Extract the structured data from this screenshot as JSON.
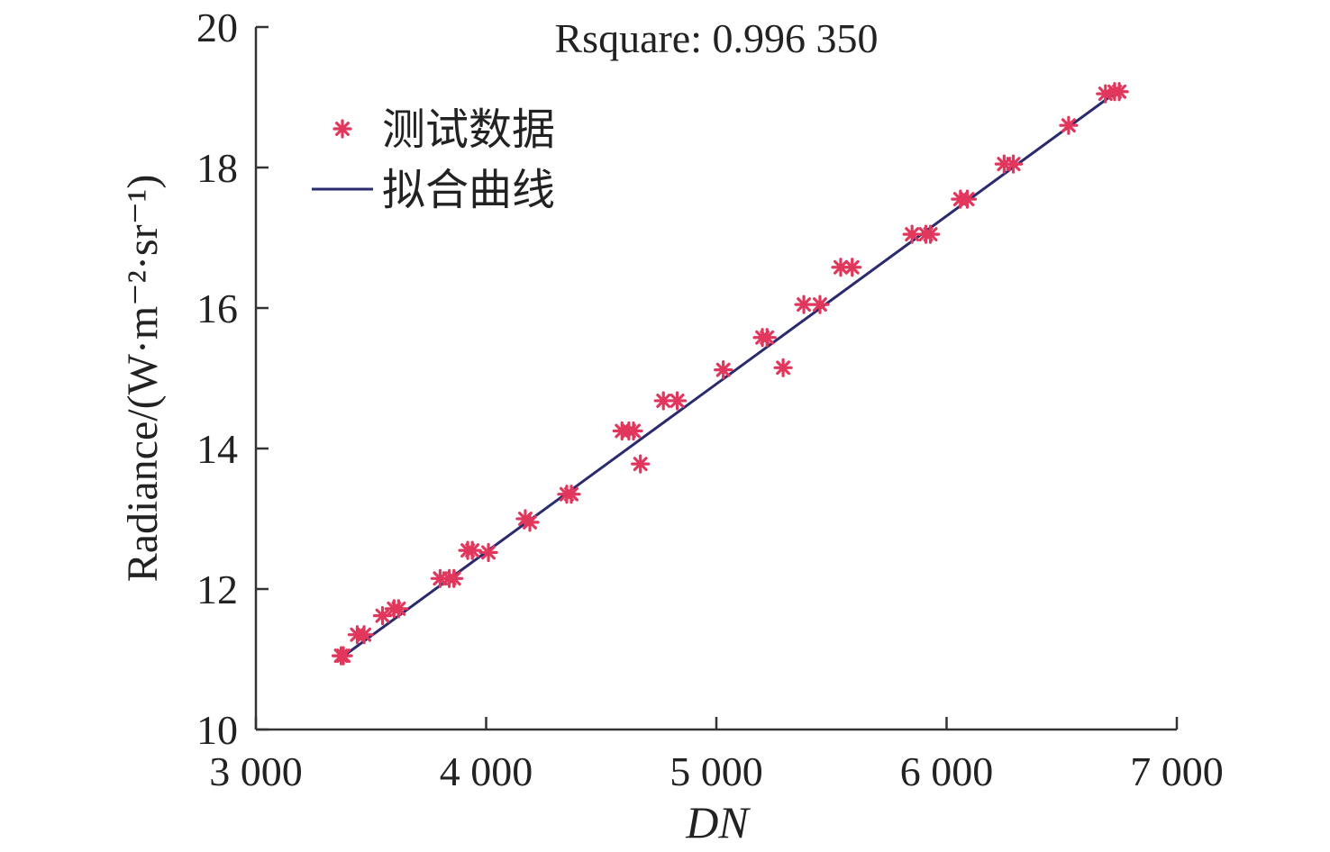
{
  "chart_data": {
    "type": "scatter",
    "title": "",
    "annotation": "Rsquare: 0.996 350",
    "xlabel": "DN",
    "ylabel": "Radiance/(W·m⁻²·sr⁻¹)",
    "xlim": [
      3000,
      7000
    ],
    "ylim": [
      10,
      20
    ],
    "xticks": [
      3000,
      4000,
      5000,
      6000,
      7000
    ],
    "xtick_labels": [
      "3 000",
      "4 000",
      "5 000",
      "6 000",
      "7 000"
    ],
    "yticks": [
      10,
      12,
      14,
      16,
      18,
      20
    ],
    "ytick_labels": [
      "10",
      "12",
      "14",
      "16",
      "18",
      "20"
    ],
    "grid": false,
    "legend_position": "upper-left",
    "series": [
      {
        "name": "测试数据",
        "kind": "scatter",
        "marker": "asterisk",
        "color": "#e2375d",
        "points": [
          [
            3370,
            11.05
          ],
          [
            3380,
            11.05
          ],
          [
            3440,
            11.35
          ],
          [
            3470,
            11.35
          ],
          [
            3550,
            11.62
          ],
          [
            3600,
            11.72
          ],
          [
            3620,
            11.72
          ],
          [
            3800,
            12.15
          ],
          [
            3840,
            12.15
          ],
          [
            3860,
            12.15
          ],
          [
            3920,
            12.55
          ],
          [
            3940,
            12.55
          ],
          [
            4010,
            12.52
          ],
          [
            4170,
            13.0
          ],
          [
            4190,
            12.95
          ],
          [
            4350,
            13.35
          ],
          [
            4370,
            13.35
          ],
          [
            4590,
            14.25
          ],
          [
            4620,
            14.25
          ],
          [
            4640,
            14.25
          ],
          [
            4670,
            13.78
          ],
          [
            4770,
            14.68
          ],
          [
            4830,
            14.68
          ],
          [
            5030,
            15.12
          ],
          [
            5200,
            15.58
          ],
          [
            5220,
            15.58
          ],
          [
            5290,
            15.15
          ],
          [
            5380,
            16.05
          ],
          [
            5450,
            16.05
          ],
          [
            5540,
            16.58
          ],
          [
            5590,
            16.58
          ],
          [
            5850,
            17.05
          ],
          [
            5910,
            17.05
          ],
          [
            5930,
            17.05
          ],
          [
            6060,
            17.55
          ],
          [
            6090,
            17.55
          ],
          [
            6250,
            18.05
          ],
          [
            6290,
            18.05
          ],
          [
            6530,
            18.6
          ],
          [
            6690,
            19.05
          ],
          [
            6730,
            19.08
          ],
          [
            6750,
            19.08
          ]
        ]
      },
      {
        "name": "拟合曲线",
        "kind": "line",
        "color": "#2a2a6e",
        "points": [
          [
            3370,
            11.02
          ],
          [
            6740,
            19.08
          ]
        ]
      }
    ]
  }
}
